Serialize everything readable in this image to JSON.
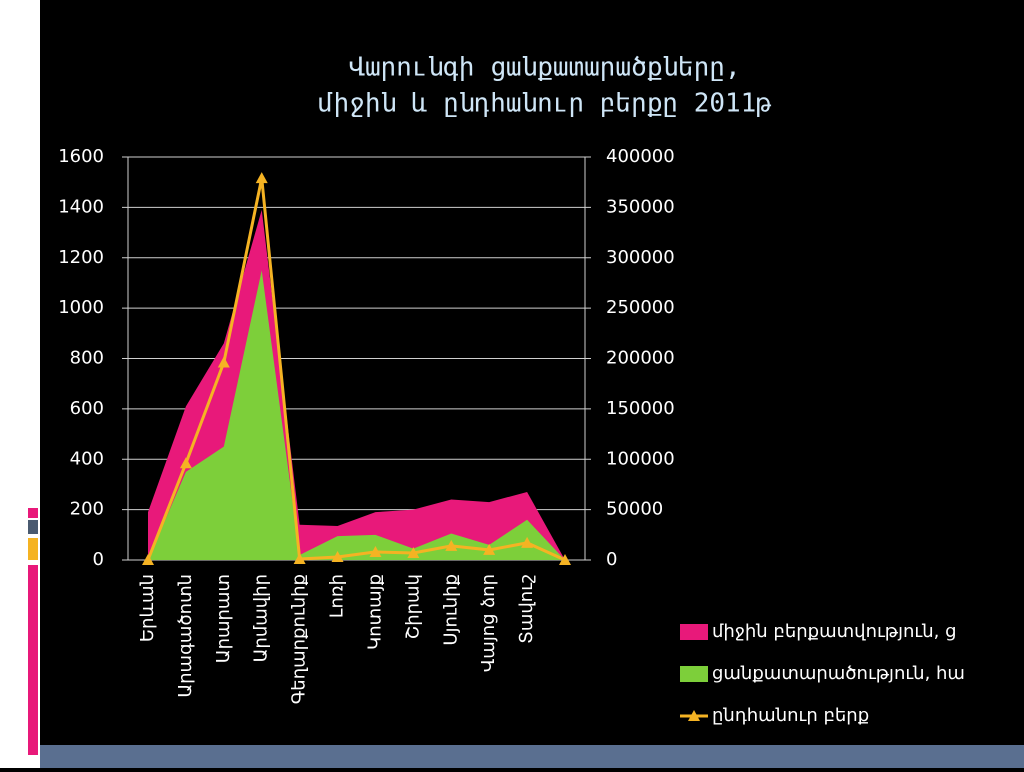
{
  "chart_data": {
    "type": "area-line",
    "title": [
      "Վարունգի ցանքատարածքները,",
      "միջին և ընդհանուր բերքը 2011թ"
    ],
    "categories": [
      "Երևան",
      "Արագածոտն",
      "Արարատ",
      "Արմավիր",
      "Գեղարքունիք",
      "Լոռի",
      "Կոտայք",
      "Շիրակ",
      "Սյունիք",
      "Վայոց ձոր",
      "Տավուշ",
      null
    ],
    "series": [
      {
        "name": "միջին բերքատվություն, ց",
        "color": "#e8197a",
        "kind": "area",
        "values": [
          190,
          610,
          860,
          1390,
          140,
          135,
          190,
          200,
          240,
          230,
          270,
          0
        ]
      },
      {
        "name": "ցանքատարածություն, հա",
        "color": "#7dcf3a",
        "kind": "area",
        "values": [
          0,
          350,
          450,
          1150,
          20,
          95,
          100,
          45,
          105,
          60,
          160,
          0
        ]
      },
      {
        "name": "ընդհանուր բերք",
        "color": "#f5b323",
        "kind": "line",
        "axis": "y2",
        "values": [
          0,
          96000,
          196000,
          379000,
          1000,
          3000,
          8000,
          7000,
          14000,
          10000,
          17000,
          0
        ]
      }
    ],
    "ylim": [
      0,
      1600
    ],
    "yticks": [
      0,
      200,
      400,
      600,
      800,
      1000,
      1200,
      1400,
      1600
    ],
    "y2lim": [
      0,
      400000
    ],
    "y2ticks": [
      0,
      50000,
      100000,
      150000,
      200000,
      250000,
      300000,
      350000,
      400000
    ],
    "grid": true,
    "legend": "lower right"
  }
}
